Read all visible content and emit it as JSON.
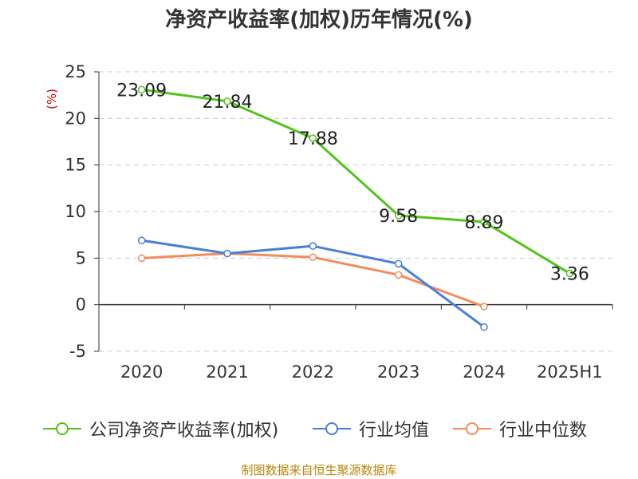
{
  "chart_data": {
    "type": "line",
    "title": "净资产收益率(加权)历年情况(%)",
    "ylabel": "(%)",
    "categories": [
      "2020",
      "2021",
      "2022",
      "2023",
      "2024",
      "2025H1"
    ],
    "yticks": [
      "25",
      "20",
      "15",
      "10",
      "5",
      "0",
      "-5"
    ],
    "ylim": [
      -5,
      25
    ],
    "grid": true,
    "legend_position": "bottom",
    "series": [
      {
        "name": "公司净资产收益率(加权)",
        "color": "#52c41a",
        "values": [
          23.09,
          21.84,
          17.88,
          9.58,
          8.89,
          3.36
        ],
        "labels": [
          "23.09",
          "21.84",
          "17.88",
          "9.58",
          "8.89",
          "3.36"
        ]
      },
      {
        "name": "行业均值",
        "color": "#4a7fd8",
        "values": [
          6.9,
          5.5,
          6.3,
          4.4,
          -2.4,
          null
        ]
      },
      {
        "name": "行业中位数",
        "color": "#f28c5c",
        "values": [
          5.0,
          5.5,
          5.1,
          3.2,
          -0.2,
          null
        ]
      }
    ]
  },
  "source": "制图数据来自恒生聚源数据库"
}
